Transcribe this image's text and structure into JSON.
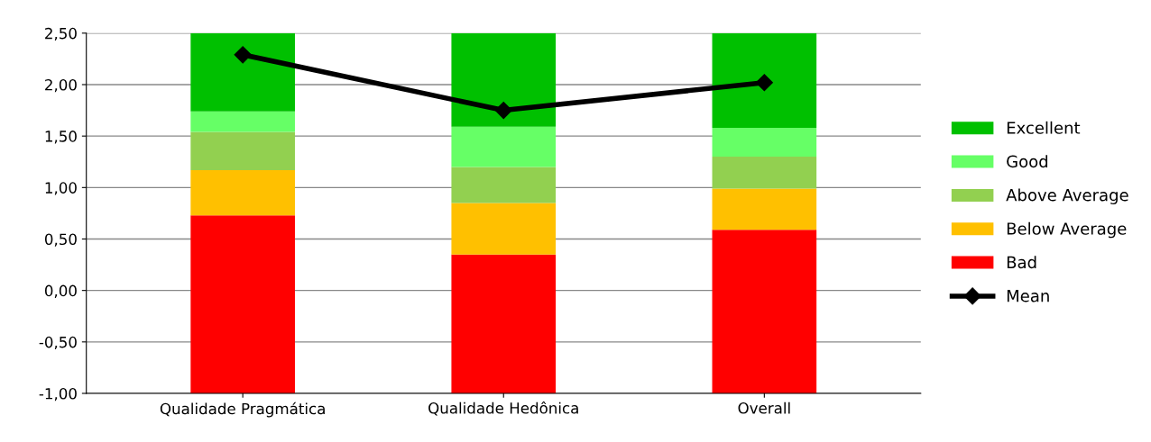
{
  "chart_data": {
    "type": "bar",
    "categories": [
      "Qualidade Pragmática",
      "Qualidade Hedônica",
      "Overall"
    ],
    "series": [
      {
        "name": "Bad",
        "color": "#ff0000",
        "base": [
          -1,
          -1,
          -1
        ],
        "values": [
          1.73,
          1.35,
          1.59
        ]
      },
      {
        "name": "Below Average",
        "color": "#ffc000",
        "base": [
          0.73,
          0.35,
          0.59
        ],
        "values": [
          0.44,
          0.5,
          0.4
        ]
      },
      {
        "name": "Above Average",
        "color": "#92d050",
        "base": [
          1.17,
          0.85,
          0.99
        ],
        "values": [
          0.37,
          0.35,
          0.31
        ]
      },
      {
        "name": "Good",
        "color": "#66ff66",
        "base": [
          1.54,
          1.2,
          1.3
        ],
        "values": [
          0.2,
          0.39,
          0.28
        ]
      },
      {
        "name": "Excellent",
        "color": "#00c000",
        "base": [
          1.74,
          1.59,
          1.58
        ],
        "values": [
          0.76,
          0.91,
          0.92
        ]
      },
      {
        "name": "Mean",
        "type": "line",
        "color": "#000000",
        "marker": "diamond",
        "values": [
          2.29,
          1.75,
          2.02
        ]
      }
    ],
    "ylim": [
      -1,
      2.5
    ],
    "yticks": [
      {
        "value": -1,
        "label": "-1,00"
      },
      {
        "value": -0.5,
        "label": "-0,50"
      },
      {
        "value": 0,
        "label": "0,00"
      },
      {
        "value": 0.5,
        "label": "0,50"
      },
      {
        "value": 1,
        "label": "1,00"
      },
      {
        "value": 1.5,
        "label": "1,50"
      },
      {
        "value": 2,
        "label": "2,00"
      },
      {
        "value": 2.5,
        "label": "2,50"
      }
    ],
    "grid": "y",
    "legend": "right"
  }
}
